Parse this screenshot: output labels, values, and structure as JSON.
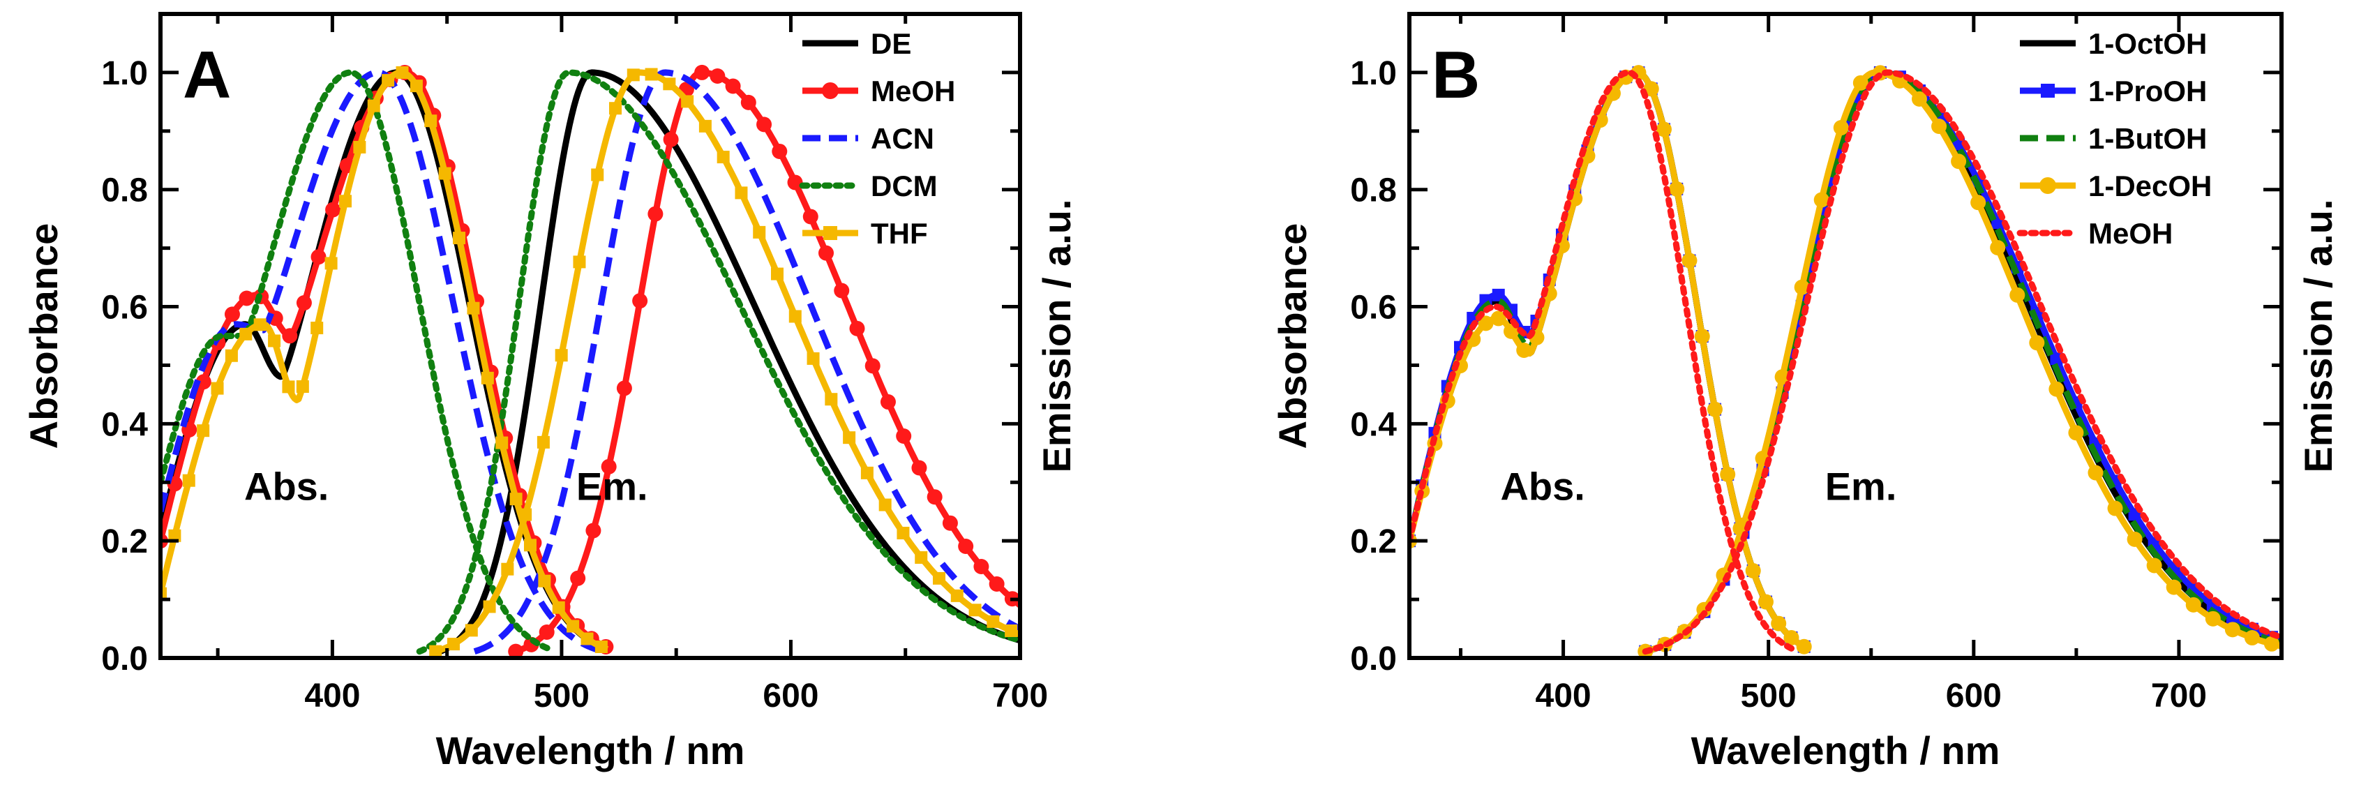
{
  "chart_data": [
    {
      "type": "line",
      "panel_label": "A",
      "xlabel": "Wavelength / nm",
      "ylabel_left": "Absorbance",
      "ylabel_right": "Emission / a.u.",
      "xlim": [
        325,
        700
      ],
      "ylim": [
        0,
        1.1
      ],
      "xticks": [
        400,
        500,
        600,
        700
      ],
      "yticks": [
        0.0,
        0.2,
        0.4,
        0.6,
        0.8,
        1.0
      ],
      "grid": false,
      "legend_position": "top-right",
      "annotations": [
        {
          "text": "Abs.",
          "x": 380,
          "y": 0.27
        },
        {
          "text": "Em.",
          "x": 522,
          "y": 0.27
        }
      ],
      "series": [
        {
          "name": "DE",
          "color": "#000000",
          "style": "solid",
          "marker": "none",
          "absorption": {
            "peak": 428,
            "shoulder": 362,
            "shoulder_height": 0.57,
            "dip": 378,
            "dip_height": 0.48,
            "start": 325,
            "start_value": 0.22,
            "end": 520,
            "end_value": 0.01
          },
          "emission": {
            "peak": 513,
            "onset": 447,
            "end": 700,
            "end_value": 0.03
          }
        },
        {
          "name": "MeOH",
          "color": "#ff1a1a",
          "style": "solid",
          "marker": "circle",
          "absorption": {
            "peak": 432,
            "shoulder": 367,
            "shoulder_height": 0.62,
            "dip": 382,
            "dip_height": 0.55,
            "start": 325,
            "start_value": 0.2,
            "end": 522,
            "end_value": 0.015
          },
          "emission": {
            "peak": 561,
            "onset": 480,
            "end": 700,
            "end_value": 0.09
          }
        },
        {
          "name": "ACN",
          "color": "#1a1aff",
          "style": "dashed",
          "marker": "none",
          "absorption": {
            "peak": 420,
            "shoulder": 358,
            "shoulder_height": 0.57,
            "dip": 370,
            "dip_height": 0.56,
            "start": 325,
            "start_value": 0.25,
            "end": 515,
            "end_value": 0.01
          },
          "emission": {
            "peak": 545,
            "onset": 462,
            "end": 700,
            "end_value": 0.05
          }
        },
        {
          "name": "DCM",
          "color": "#108010",
          "style": "dotted",
          "marker": "none",
          "absorption": {
            "peak": 408,
            "shoulder": 352,
            "shoulder_height": 0.55,
            "dip": 362,
            "dip_height": 0.55,
            "start": 325,
            "start_value": 0.3,
            "end": 495,
            "end_value": 0.01
          },
          "emission": {
            "peak": 503,
            "onset": 438,
            "end": 700,
            "end_value": 0.03
          }
        },
        {
          "name": "THF",
          "color": "#f5b800",
          "style": "solid",
          "marker": "square",
          "absorption": {
            "peak": 430,
            "shoulder": 370,
            "shoulder_height": 0.57,
            "dip": 385,
            "dip_height": 0.44,
            "start": 325,
            "start_value": 0.11,
            "end": 520,
            "end_value": 0.01
          },
          "emission": {
            "peak": 534,
            "onset": 445,
            "end": 700,
            "end_value": 0.04
          }
        }
      ]
    },
    {
      "type": "line",
      "panel_label": "B",
      "xlabel": "Wavelength / nm",
      "ylabel_left": "Absorbance",
      "ylabel_right": "Emission / a.u.",
      "xlim": [
        325,
        750
      ],
      "ylim": [
        0,
        1.1
      ],
      "xticks": [
        400,
        500,
        600,
        700
      ],
      "yticks": [
        0.0,
        0.2,
        0.4,
        0.6,
        0.8,
        1.0
      ],
      "grid": false,
      "legend_position": "top-right",
      "annotations": [
        {
          "text": "Abs.",
          "x": 390,
          "y": 0.27
        },
        {
          "text": "Em.",
          "x": 545,
          "y": 0.27
        }
      ],
      "series": [
        {
          "name": "1-OctOH",
          "color": "#000000",
          "style": "solid",
          "marker": "none",
          "absorption": {
            "peak": 436,
            "shoulder": 368,
            "shoulder_height": 0.61,
            "dip": 384,
            "dip_height": 0.52,
            "start": 325,
            "start_value": 0.2,
            "end": 520,
            "end_value": 0.015
          },
          "emission": {
            "peak": 554,
            "onset": 440,
            "end": 750,
            "end_value": 0.025
          }
        },
        {
          "name": "1-ProOH",
          "color": "#1a1aff",
          "style": "solid",
          "marker": "square",
          "absorption": {
            "peak": 436,
            "shoulder": 368,
            "shoulder_height": 0.62,
            "dip": 384,
            "dip_height": 0.55,
            "start": 325,
            "start_value": 0.2,
            "end": 520,
            "end_value": 0.015
          },
          "emission": {
            "peak": 555,
            "onset": 440,
            "end": 750,
            "end_value": 0.03
          }
        },
        {
          "name": "1-ButOH",
          "color": "#108010",
          "style": "dashed",
          "marker": "none",
          "absorption": {
            "peak": 436,
            "shoulder": 368,
            "shoulder_height": 0.61,
            "dip": 384,
            "dip_height": 0.53,
            "start": 325,
            "start_value": 0.2,
            "end": 520,
            "end_value": 0.015
          },
          "emission": {
            "peak": 555,
            "onset": 440,
            "end": 750,
            "end_value": 0.025
          }
        },
        {
          "name": "1-DecOH",
          "color": "#f5b800",
          "style": "solid",
          "marker": "circle",
          "absorption": {
            "peak": 436,
            "shoulder": 368,
            "shoulder_height": 0.58,
            "dip": 384,
            "dip_height": 0.52,
            "start": 325,
            "start_value": 0.2,
            "end": 520,
            "end_value": 0.015
          },
          "emission": {
            "peak": 552,
            "onset": 440,
            "end": 750,
            "end_value": 0.02
          }
        },
        {
          "name": "MeOH",
          "color": "#ff1a1a",
          "style": "dotted",
          "marker": "none",
          "absorption": {
            "peak": 432,
            "shoulder": 367,
            "shoulder_height": 0.6,
            "dip": 384,
            "dip_height": 0.55,
            "start": 325,
            "start_value": 0.2,
            "end": 512,
            "end_value": 0.015
          },
          "emission": {
            "peak": 558,
            "onset": 440,
            "end": 750,
            "end_value": 0.035
          }
        }
      ]
    }
  ]
}
